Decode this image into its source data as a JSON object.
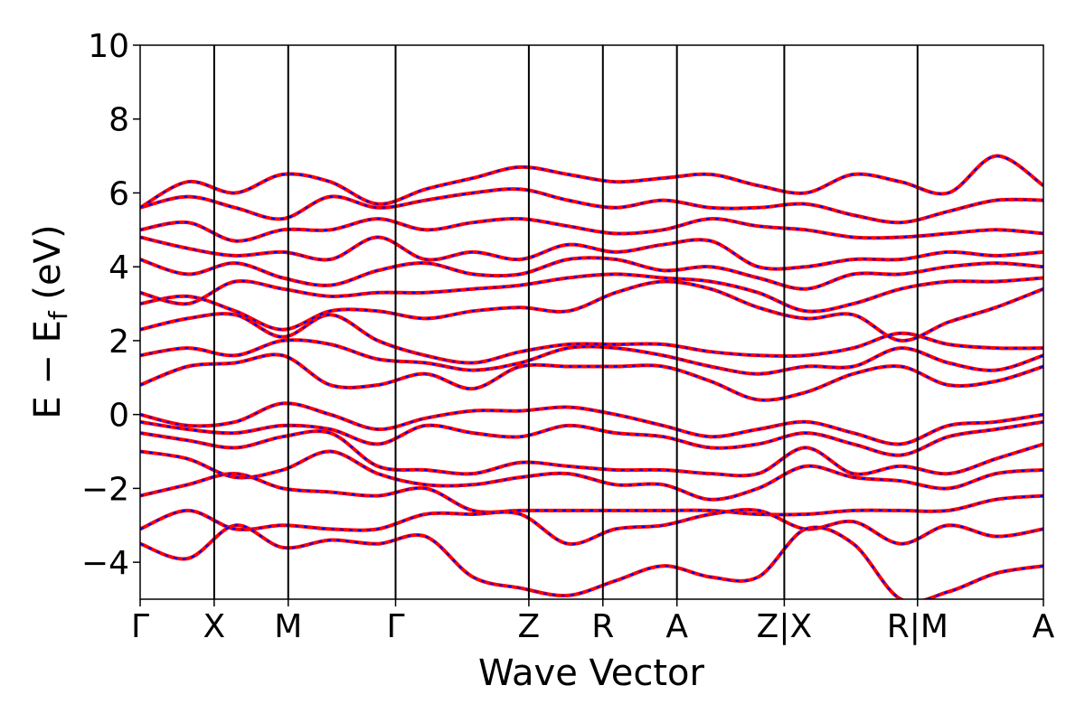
{
  "chart_data": {
    "type": "line",
    "title": "",
    "xlabel": "Wave Vector",
    "ylabel": "E − E",
    "ylabel_subscript": "f",
    "ylabel_unit": " (eV)",
    "ylim": [
      -5,
      10
    ],
    "yticks": [
      -4,
      -2,
      0,
      2,
      4,
      6,
      8,
      10
    ],
    "ytick_labels": [
      "−4",
      "−2",
      "0",
      "2",
      "4",
      "6",
      "8",
      "10"
    ],
    "xlim": [
      0,
      12.2
    ],
    "kpoint_positions": [
      0,
      1,
      2,
      3.45,
      5.25,
      6.25,
      7.25,
      8.7,
      10.5,
      12.2
    ],
    "kpoint_labels": [
      "Γ",
      "X",
      "M",
      "Γ",
      "Z",
      "R",
      "A",
      "Z|X",
      "R|M",
      "A"
    ],
    "grid": false,
    "legend": "none",
    "colors": {
      "bands_solid": "#ff0000",
      "bands_dashed": "#0000ff",
      "axes": "#000000"
    },
    "series": [
      {
        "values": [
          0,
          -0.3,
          -0.2,
          0.3,
          0.0,
          -0.4,
          -0.1,
          0.1,
          0.1,
          0.2,
          0.0,
          -0.3,
          -0.6,
          -0.4,
          -0.2,
          -0.5,
          -0.8,
          -0.3,
          -0.2,
          0.0
        ]
      },
      {
        "values": [
          -0.2,
          -0.4,
          -0.5,
          -0.3,
          -0.4,
          -0.8,
          -0.3,
          -0.5,
          -0.6,
          -0.3,
          -0.5,
          -0.6,
          -0.9,
          -0.8,
          -0.5,
          -0.8,
          -1.1,
          -0.6,
          -0.4,
          -0.2
        ]
      },
      {
        "values": [
          -0.5,
          -0.7,
          -0.9,
          -0.6,
          -0.5,
          -1.4,
          -1.5,
          -1.6,
          -1.3,
          -1.4,
          -1.5,
          -1.5,
          -1.6,
          -1.6,
          -0.9,
          -1.6,
          -1.4,
          -1.6,
          -1.2,
          -0.8
        ]
      },
      {
        "values": [
          -1.0,
          -1.2,
          -1.7,
          -1.5,
          -1.0,
          -1.6,
          -1.9,
          -1.9,
          -1.7,
          -1.6,
          -1.9,
          -1.9,
          -2.3,
          -2.0,
          -1.4,
          -1.7,
          -1.8,
          -2.0,
          -1.6,
          -1.5
        ]
      },
      {
        "values": [
          -2.2,
          -1.9,
          -1.6,
          -2.0,
          -2.1,
          -2.2,
          -2.0,
          -2.6,
          -2.6,
          -2.6,
          -2.6,
          -2.6,
          -2.6,
          -2.7,
          -2.7,
          -2.6,
          -2.6,
          -2.6,
          -2.3,
          -2.2
        ]
      },
      {
        "values": [
          -3.1,
          -2.6,
          -3.1,
          -3.0,
          -3.1,
          -3.1,
          -2.7,
          -2.7,
          -2.7,
          -3.5,
          -3.1,
          -3.0,
          -2.7,
          -2.6,
          -3.1,
          -2.9,
          -3.5,
          -3.0,
          -3.3,
          -3.1
        ]
      },
      {
        "values": [
          -3.5,
          -3.9,
          -3.0,
          -3.6,
          -3.4,
          -3.5,
          -3.3,
          -4.4,
          -4.7,
          -4.9,
          -4.5,
          -4.1,
          -4.4,
          -4.4,
          -3.1,
          -3.5,
          -5.0,
          -4.8,
          -4.3,
          -4.1
        ]
      },
      {
        "values": [
          0.8,
          1.3,
          1.4,
          1.6,
          0.8,
          0.8,
          1.1,
          0.7,
          1.3,
          1.3,
          1.3,
          1.3,
          0.9,
          0.4,
          0.6,
          1.1,
          1.3,
          0.8,
          0.9,
          1.3
        ]
      },
      {
        "values": [
          1.6,
          1.8,
          1.6,
          2.0,
          1.9,
          1.5,
          1.4,
          1.2,
          1.4,
          1.8,
          1.8,
          1.6,
          1.3,
          1.1,
          1.3,
          1.3,
          1.8,
          1.4,
          1.2,
          1.6
        ]
      },
      {
        "values": [
          2.3,
          2.6,
          2.7,
          2.1,
          2.7,
          2.0,
          1.6,
          1.4,
          1.7,
          1.9,
          1.9,
          1.9,
          1.7,
          1.6,
          1.6,
          1.8,
          2.2,
          1.9,
          1.8,
          1.8
        ]
      },
      {
        "values": [
          3.0,
          3.2,
          2.8,
          2.3,
          2.8,
          2.8,
          2.6,
          2.8,
          2.9,
          2.8,
          3.3,
          3.6,
          3.4,
          2.9,
          2.6,
          2.7,
          2.0,
          2.5,
          2.9,
          3.4
        ]
      },
      {
        "values": [
          3.3,
          3.0,
          3.6,
          3.4,
          3.2,
          3.3,
          3.3,
          3.4,
          3.5,
          3.7,
          3.8,
          3.7,
          3.6,
          3.3,
          2.8,
          3.0,
          3.4,
          3.6,
          3.6,
          3.7
        ]
      },
      {
        "values": [
          4.2,
          3.8,
          4.1,
          3.7,
          3.5,
          3.9,
          4.1,
          3.8,
          3.8,
          4.2,
          4.2,
          3.9,
          4.0,
          3.7,
          3.4,
          3.8,
          3.8,
          4.0,
          4.1,
          4.0
        ]
      },
      {
        "values": [
          4.8,
          4.5,
          4.3,
          4.4,
          4.2,
          4.8,
          4.2,
          4.4,
          4.2,
          4.6,
          4.4,
          4.6,
          4.7,
          4.0,
          4.0,
          4.2,
          4.2,
          4.4,
          4.3,
          4.4
        ]
      },
      {
        "values": [
          5.0,
          5.2,
          4.7,
          5.0,
          5.0,
          5.3,
          5.0,
          5.2,
          5.3,
          5.1,
          4.9,
          5.0,
          5.3,
          5.1,
          5.0,
          4.8,
          4.8,
          4.9,
          5.0,
          4.9
        ]
      },
      {
        "values": [
          5.6,
          5.9,
          5.6,
          5.3,
          5.9,
          5.6,
          5.8,
          6.0,
          6.1,
          5.8,
          5.6,
          5.8,
          5.6,
          5.6,
          5.7,
          5.4,
          5.2,
          5.5,
          5.8,
          5.8
        ]
      },
      {
        "values": [
          5.6,
          6.3,
          6.0,
          6.5,
          6.3,
          5.7,
          6.1,
          6.4,
          6.7,
          6.5,
          6.3,
          6.4,
          6.5,
          6.2,
          6.0,
          6.5,
          6.3,
          6.0,
          7.0,
          6.2
        ]
      }
    ]
  }
}
